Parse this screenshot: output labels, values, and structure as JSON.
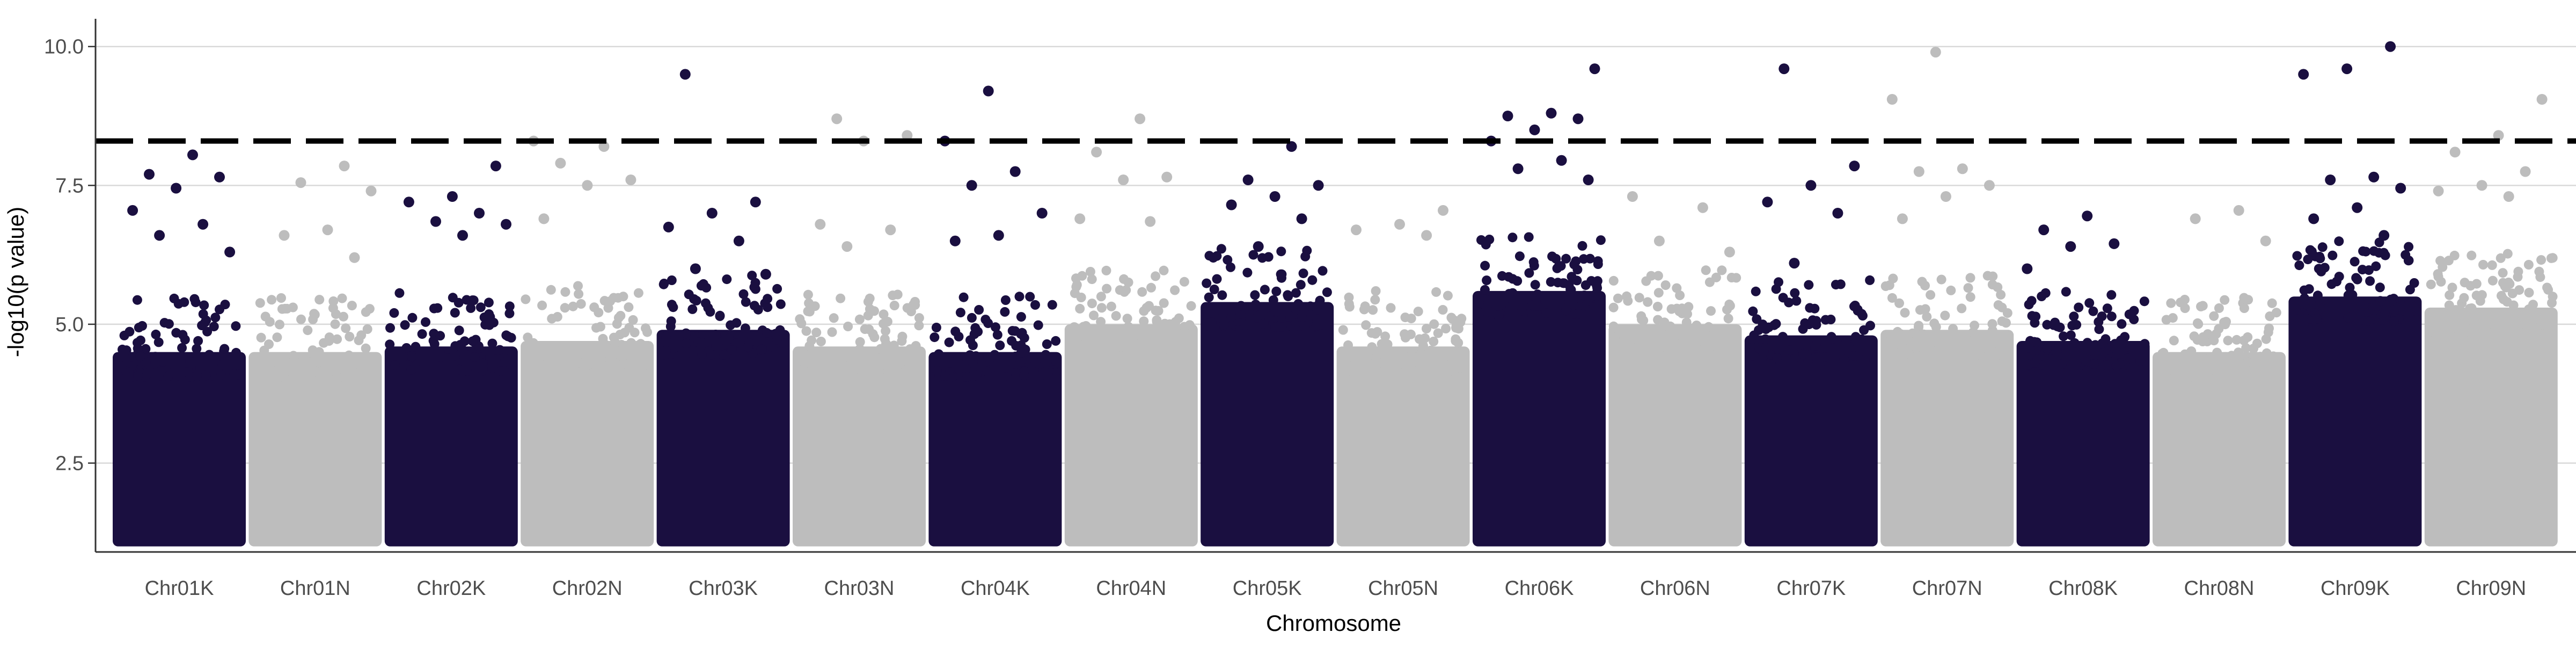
{
  "chart_data": {
    "type": "scatter",
    "title": "",
    "xlabel": "Chromosome",
    "ylabel": "-log10(p value)",
    "ylim": [
      0.9,
      10.5
    ],
    "yticks": [
      "2.5",
      "5.0",
      "7.5",
      "10.0"
    ],
    "ytick_values": [
      2.5,
      5.0,
      7.5,
      10.0
    ],
    "grid": "horizontal major gridlines on",
    "legend": "none",
    "threshold": 8.3,
    "threshold_color": "#000000",
    "colors": {
      "dark": "#1a0f40",
      "light": "#bdbdbd",
      "grid": "#d9d9d9",
      "axis": "#333333"
    },
    "point_floor": 1.0,
    "categories": [
      "Chr01K",
      "Chr01N",
      "Chr02K",
      "Chr02N",
      "Chr03K",
      "Chr03N",
      "Chr04K",
      "Chr04N",
      "Chr05K",
      "Chr05N",
      "Chr06K",
      "Chr06N",
      "Chr07K",
      "Chr07N",
      "Chr08K",
      "Chr08N",
      "Chr09K",
      "Chr09N"
    ],
    "series": [
      {
        "category": "Chr01K",
        "color_group": "dark",
        "dense_upper": 4.5,
        "top_values": [
          8.05,
          7.7,
          7.65,
          7.45,
          7.05,
          6.8,
          6.6,
          6.3
        ]
      },
      {
        "category": "Chr01N",
        "color_group": "light",
        "dense_upper": 4.5,
        "top_values": [
          7.85,
          7.55,
          7.4,
          6.7,
          6.6,
          6.2
        ]
      },
      {
        "category": "Chr02K",
        "color_group": "dark",
        "dense_upper": 4.6,
        "top_values": [
          7.85,
          7.3,
          7.2,
          7.0,
          6.85,
          6.8,
          6.6
        ]
      },
      {
        "category": "Chr02N",
        "color_group": "light",
        "dense_upper": 4.7,
        "top_values": [
          8.3,
          8.2,
          7.9,
          7.6,
          7.5,
          6.9
        ]
      },
      {
        "category": "Chr03K",
        "color_group": "dark",
        "dense_upper": 4.9,
        "top_values": [
          9.5,
          7.2,
          7.0,
          6.75,
          6.5,
          6.0,
          5.9
        ]
      },
      {
        "category": "Chr03N",
        "color_group": "light",
        "dense_upper": 4.6,
        "top_values": [
          8.7,
          8.4,
          8.3,
          6.8,
          6.7,
          6.4
        ]
      },
      {
        "category": "Chr04K",
        "color_group": "dark",
        "dense_upper": 4.5,
        "top_values": [
          9.2,
          8.3,
          7.75,
          7.5,
          7.0,
          6.6,
          6.5
        ]
      },
      {
        "category": "Chr04N",
        "color_group": "light",
        "dense_upper": 5.0,
        "top_values": [
          8.7,
          8.1,
          7.65,
          7.6,
          6.9,
          6.85
        ]
      },
      {
        "category": "Chr05K",
        "color_group": "dark",
        "dense_upper": 5.4,
        "top_values": [
          8.2,
          7.6,
          7.5,
          7.3,
          7.15,
          6.9,
          6.4
        ]
      },
      {
        "category": "Chr05N",
        "color_group": "light",
        "dense_upper": 4.6,
        "top_values": [
          7.05,
          6.8,
          6.7,
          6.6
        ]
      },
      {
        "category": "Chr06K",
        "color_group": "dark",
        "dense_upper": 5.6,
        "top_values": [
          9.6,
          8.8,
          8.75,
          8.7,
          8.5,
          8.3,
          7.95,
          7.8,
          7.6
        ]
      },
      {
        "category": "Chr06N",
        "color_group": "light",
        "dense_upper": 5.0,
        "top_values": [
          7.3,
          7.1,
          6.5,
          6.3
        ]
      },
      {
        "category": "Chr07K",
        "color_group": "dark",
        "dense_upper": 4.8,
        "top_values": [
          9.6,
          7.85,
          7.5,
          7.2,
          7.0,
          6.1
        ]
      },
      {
        "category": "Chr07N",
        "color_group": "light",
        "dense_upper": 4.9,
        "top_values": [
          9.9,
          9.05,
          7.8,
          7.75,
          7.5,
          7.3,
          6.9
        ]
      },
      {
        "category": "Chr08K",
        "color_group": "dark",
        "dense_upper": 4.7,
        "top_values": [
          6.95,
          6.7,
          6.45,
          6.4,
          6.0
        ]
      },
      {
        "category": "Chr08N",
        "color_group": "light",
        "dense_upper": 4.5,
        "top_values": [
          7.05,
          6.9,
          6.5
        ]
      },
      {
        "category": "Chr09K",
        "color_group": "dark",
        "dense_upper": 5.5,
        "top_values": [
          10.0,
          9.6,
          9.5,
          7.65,
          7.6,
          7.45,
          7.1,
          6.9,
          6.6
        ]
      },
      {
        "category": "Chr09N",
        "color_group": "light",
        "dense_upper": 5.3,
        "top_values": [
          9.05,
          8.4,
          8.1,
          7.75,
          7.5,
          7.4,
          7.3
        ]
      }
    ]
  }
}
